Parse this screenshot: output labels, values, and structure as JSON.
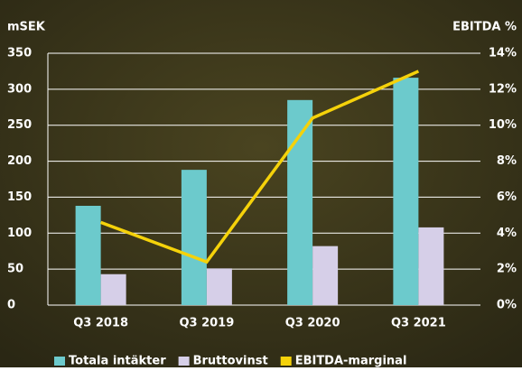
{
  "chart_data": {
    "type": "bar",
    "y_label": "mSEK",
    "y2_label": "EBITDA %",
    "categories": [
      "Q3 2018",
      "Q3 2019",
      "Q3 2020",
      "Q3 2021"
    ],
    "series": [
      {
        "name": "Totala intäkter",
        "color": "#6ccacc",
        "values": [
          138,
          188,
          285,
          316
        ]
      },
      {
        "name": "Bruttovinst",
        "color": "#d6cfe8",
        "values": [
          43,
          51,
          82,
          108
        ]
      },
      {
        "name": "EBITDA-marginal",
        "color": "#f5d20a",
        "type": "line",
        "axis": "y2",
        "values": [
          4.6,
          2.4,
          10.4,
          13.0
        ]
      }
    ],
    "ylim": [
      0,
      350
    ],
    "yticks": [
      0,
      50,
      100,
      150,
      200,
      250,
      300,
      350
    ],
    "y2lim": [
      0,
      14
    ],
    "y2ticks": [
      {
        "value": 0,
        "label": "0%"
      },
      {
        "value": 2,
        "label": "2%"
      },
      {
        "value": 4,
        "label": "4%"
      },
      {
        "value": 6,
        "label": "6%"
      },
      {
        "value": 8,
        "label": "8%"
      },
      {
        "value": 10,
        "label": "10%"
      },
      {
        "value": 12,
        "label": "12%"
      },
      {
        "value": 14,
        "label": "14%"
      }
    ],
    "grid": true,
    "legend": "bottom"
  }
}
